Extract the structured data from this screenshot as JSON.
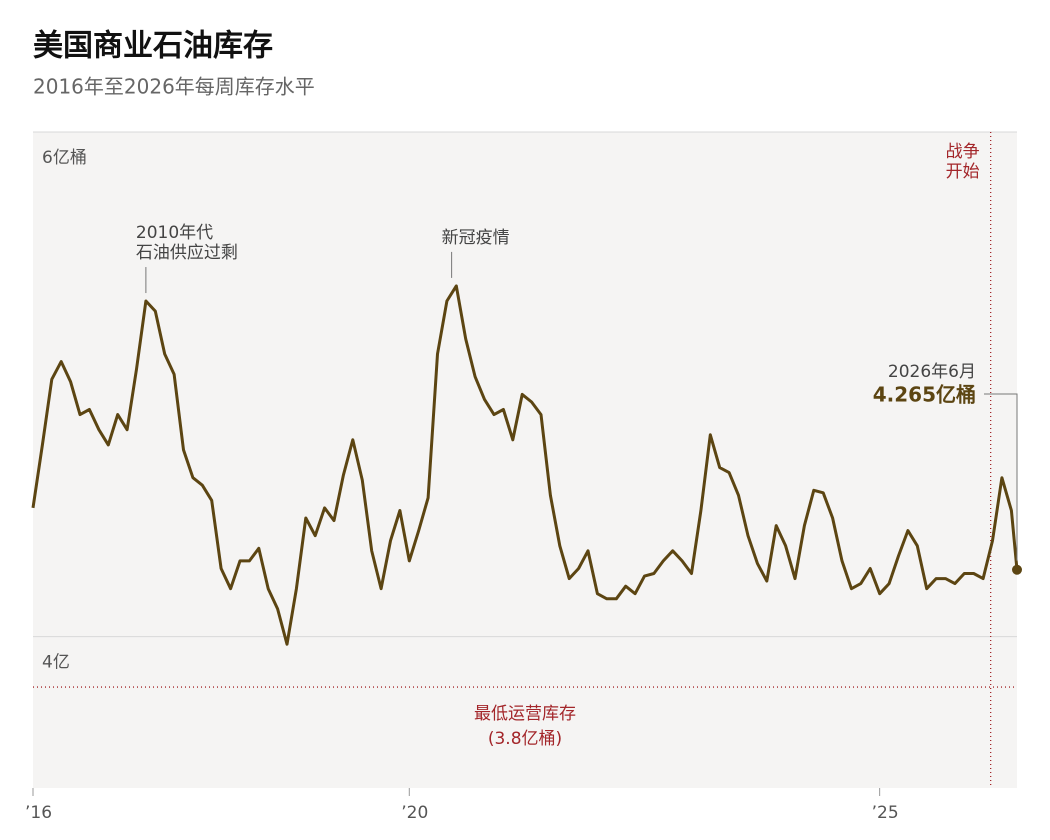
{
  "chart_data": {
    "type": "line",
    "title": "美国商业石油库存",
    "subtitle": "2016年至2026年每周库存水平",
    "x": [
      2016,
      2016.1,
      2016.2,
      2016.3,
      2016.4,
      2016.5,
      2016.6,
      2016.7,
      2016.8,
      2016.9,
      2017,
      2017.1,
      2017.2,
      2017.3,
      2017.4,
      2017.5,
      2017.6,
      2017.7,
      2017.8,
      2017.9,
      2018,
      2018.1,
      2018.2,
      2018.3,
      2018.4,
      2018.5,
      2018.6,
      2018.7,
      2018.8,
      2018.9,
      2019,
      2019.1,
      2019.2,
      2019.3,
      2019.4,
      2019.5,
      2019.6,
      2019.7,
      2019.8,
      2019.9,
      2020,
      2020.1,
      2020.2,
      2020.3,
      2020.4,
      2020.5,
      2020.6,
      2020.7,
      2020.8,
      2020.9,
      2021,
      2021.1,
      2021.2,
      2021.3,
      2021.4,
      2021.5,
      2021.6,
      2021.7,
      2021.8,
      2021.9,
      2022,
      2022.1,
      2022.2,
      2022.3,
      2022.4,
      2022.5,
      2022.6,
      2022.7,
      2022.8,
      2022.9,
      2023,
      2023.1,
      2023.2,
      2023.3,
      2023.4,
      2023.5,
      2023.6,
      2023.7,
      2023.8,
      2023.9,
      2024,
      2024.1,
      2024.2,
      2024.3,
      2024.4,
      2024.5,
      2024.6,
      2024.7,
      2024.8,
      2024.9,
      2025,
      2025.1,
      2025.2,
      2025.3,
      2025.4,
      2025.5,
      2025.6,
      2025.7,
      2025.8,
      2025.9,
      2026,
      2026.1,
      2026.2,
      2026.3,
      2026.4,
      2026.46
    ],
    "values": [
      4.51,
      4.76,
      5.02,
      5.09,
      5.01,
      4.88,
      4.9,
      4.82,
      4.76,
      4.88,
      4.82,
      5.06,
      5.33,
      5.29,
      5.12,
      5.04,
      4.74,
      4.63,
      4.6,
      4.54,
      4.27,
      4.19,
      4.3,
      4.3,
      4.35,
      4.19,
      4.11,
      3.97,
      4.19,
      4.47,
      4.4,
      4.51,
      4.46,
      4.64,
      4.78,
      4.62,
      4.34,
      4.19,
      4.38,
      4.5,
      4.3,
      4.42,
      4.55,
      5.12,
      5.33,
      5.39,
      5.18,
      5.03,
      4.94,
      4.88,
      4.9,
      4.78,
      4.96,
      4.93,
      4.88,
      4.56,
      4.36,
      4.23,
      4.27,
      4.34,
      4.17,
      4.15,
      4.15,
      4.2,
      4.17,
      4.24,
      4.25,
      4.3,
      4.34,
      4.3,
      4.25,
      4.5,
      4.8,
      4.67,
      4.65,
      4.56,
      4.4,
      4.29,
      4.22,
      4.44,
      4.36,
      4.23,
      4.44,
      4.58,
      4.57,
      4.47,
      4.3,
      4.19,
      4.21,
      4.27,
      4.17,
      4.21,
      4.32,
      4.42,
      4.36,
      4.19,
      4.23,
      4.23,
      4.21,
      4.25,
      4.25,
      4.23,
      4.38,
      4.63,
      4.5,
      4.265
    ],
    "value_labels": [
      null,
      null,
      null,
      null,
      null,
      null,
      null,
      null,
      null,
      null,
      null,
      null,
      null,
      null,
      null,
      null,
      null,
      null,
      null,
      null,
      null,
      null,
      null,
      null,
      null,
      null,
      null,
      null,
      null,
      null,
      null,
      null,
      null,
      null,
      null,
      null,
      null,
      null,
      null,
      null,
      null,
      null,
      null,
      null,
      null,
      null,
      null,
      null,
      null,
      null,
      null,
      null,
      null,
      null,
      null,
      null,
      null,
      null,
      null,
      null,
      null,
      null,
      null,
      null,
      null,
      null,
      null,
      null,
      null,
      null,
      null,
      null,
      null,
      null,
      null,
      null,
      null,
      null,
      null,
      null,
      null,
      null,
      null,
      null,
      null,
      null,
      null,
      null,
      null,
      null,
      null,
      null,
      null,
      null,
      null,
      null,
      null,
      null,
      null,
      null,
      null,
      null,
      null,
      null,
      null,
      "4.265亿桶"
    ],
    "last_point_date": "2026年6月",
    "color": "#5c4512",
    "xlim": [
      2016,
      2026.46
    ],
    "xticks": [
      {
        "value": 2016,
        "label": "’16"
      },
      {
        "value": 2020,
        "label": "’20"
      },
      {
        "value": 2025,
        "label": "’25"
      }
    ],
    "ylim": [
      3.4,
      6.0
    ],
    "yticks": [
      {
        "value": 4,
        "label": "4亿"
      },
      {
        "value": 6,
        "label": "6亿桶"
      }
    ],
    "grid": true,
    "annotations": [
      {
        "x": 2017.2,
        "y": 5.33,
        "lines": [
          "2010年代",
          "石油供应过剩"
        ]
      },
      {
        "x": 2020.45,
        "y": 5.39,
        "lines": [
          "新冠疫情"
        ]
      }
    ],
    "event_line": {
      "x": 2026.18,
      "lines": [
        "战争",
        "开始"
      ],
      "color": "#a3262a"
    },
    "reference_line": {
      "value": 3.8,
      "label": "最低运营库存",
      "sublabel": "(3.8亿桶)",
      "color": "#a3262a"
    }
  }
}
